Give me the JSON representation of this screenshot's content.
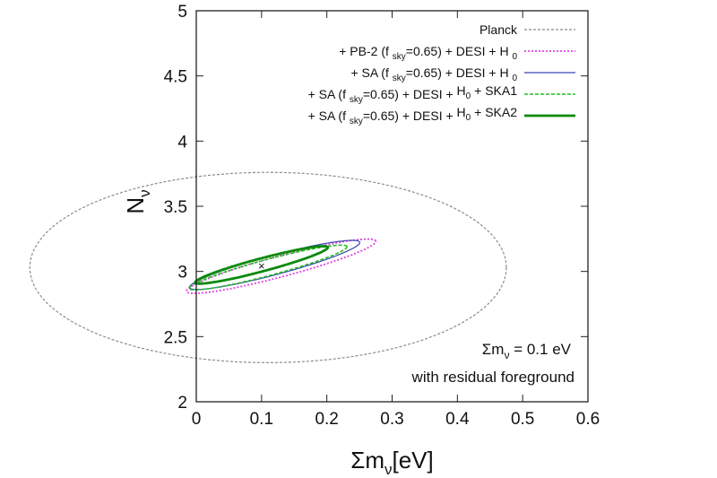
{
  "chart_data": {
    "type": "scatter",
    "xlabel_main": "Σm",
    "xlabel_sub": "ν",
    "xlabel_tail": "[eV]",
    "ylabel_main": "N",
    "ylabel_sub": "ν",
    "xlim": [
      0,
      0.6
    ],
    "ylim": [
      2,
      5
    ],
    "xticks": [
      "0",
      "0.1",
      "0.2",
      "0.3",
      "0.4",
      "0.5",
      "0.6"
    ],
    "yticks": [
      "2",
      "2.5",
      "3",
      "3.5",
      "4",
      "4.5",
      "5"
    ],
    "grid": false,
    "legend_placement": "top-right",
    "fiducial": {
      "x": 0.1,
      "y": 3.046,
      "marker": "×"
    },
    "annotation_line1_main": "Σm",
    "annotation_line1_sub": "ν",
    "annotation_line1_tail": " = 0.1 eV",
    "annotation_line2": "with residual foreground",
    "series": [
      {
        "name": "Planck",
        "legend": [
          {
            "t": "Planck"
          }
        ],
        "color": "#8c8c8c",
        "dash": "3,2",
        "width": 1.2,
        "ellipse": {
          "cx": 0.11,
          "cy": 3.03,
          "rx": 0.365,
          "ry": 0.73,
          "angle": 0
        }
      },
      {
        "name": "+ PB-2 (fsky=0.65) + DESI + H0",
        "legend": [
          {
            "t": "+ PB-2 (f "
          },
          {
            "t": "sky",
            "sub": true
          },
          {
            "t": "=0.65) + DESI + H "
          },
          {
            "t": "0",
            "sub": true
          }
        ],
        "color": "#e040e0",
        "dash": "2,2",
        "width": 1.8,
        "ellipse": {
          "cx": 0.13,
          "cy": 3.04,
          "rx": 0.15,
          "ry": 0.08,
          "angle": 0.52
        }
      },
      {
        "name": "+ SA (fsky=0.65) + DESI + H0",
        "legend": [
          {
            "t": "+ SA (f "
          },
          {
            "t": "sky",
            "sub": true
          },
          {
            "t": "=0.65) + DESI + H "
          },
          {
            "t": "0",
            "sub": true
          }
        ],
        "color": "#3a46b0",
        "dash": "",
        "width": 1.2,
        "ellipse": {
          "cx": 0.12,
          "cy": 3.05,
          "rx": 0.135,
          "ry": 0.075,
          "angle": 0.52
        }
      },
      {
        "name": "+ SA (fsky=0.65) + DESI + H0 + SKA1",
        "legend": [
          {
            "t": "+ SA (f "
          },
          {
            "t": "sky",
            "sub": true
          },
          {
            "t": "=0.65) + DESI + "
          },
          {
            "t": " H"
          },
          {
            "t": "0",
            "sub": true
          },
          {
            "t": " + SKA1"
          }
        ],
        "color": "#22c022",
        "dash": "4,2",
        "width": 1.6,
        "ellipse": {
          "cx": 0.11,
          "cy": 3.03,
          "rx": 0.125,
          "ry": 0.062,
          "angle": 0.52
        }
      },
      {
        "name": "+ SA (fsky=0.65) + DESI + H0 + SKA2",
        "legend": [
          {
            "t": "+ SA (f "
          },
          {
            "t": "sky",
            "sub": true
          },
          {
            "t": "=0.65) + DESI + "
          },
          {
            "t": " H"
          },
          {
            "t": "0",
            "sub": true
          },
          {
            "t": " + SKA2"
          }
        ],
        "color": "#0b8a0b",
        "dash": "",
        "width": 2.8,
        "ellipse": {
          "cx": 0.1,
          "cy": 3.05,
          "rx": 0.105,
          "ry": 0.05,
          "angle": 0.52
        }
      }
    ]
  }
}
